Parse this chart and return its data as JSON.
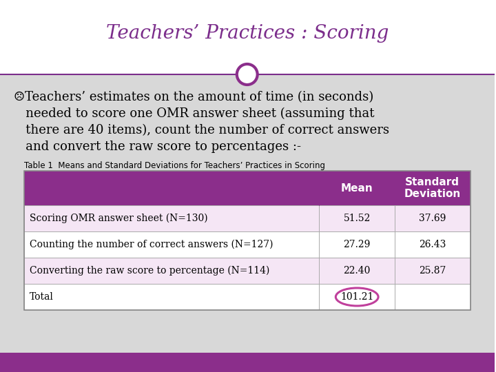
{
  "title": "Teachers’ Practices : Scoring",
  "title_color": "#7B2D8B",
  "white_bg": "#FFFFFF",
  "gray_bg": "#D8D8D8",
  "bottom_bar_color": "#8B2E8B",
  "body_line1": "☹Teachers’ estimates on the amount of time (in seconds)",
  "body_line2": "   needed to score one OMR answer sheet (assuming that",
  "body_line3": "   there are 40 items), count the number of correct answers",
  "body_line4": "   and convert the raw score to percentages :-",
  "table_caption": "Table 1  Means and Standard Deviations for Teachers’ Practices in Scoring",
  "table_header_bg": "#8B2E8B",
  "table_header_color": "#FFFFFF",
  "table_row_colors": [
    "#F5E6F5",
    "#FFFFFF",
    "#F5E6F5",
    "#FFFFFF"
  ],
  "table_rows": [
    {
      "label": "Scoring OMR answer sheet (N=130)",
      "mean": "51.52",
      "sd": "37.69"
    },
    {
      "label": "Counting the number of correct answers (N=127)",
      "mean": "27.29",
      "sd": "26.43"
    },
    {
      "label": "Converting the raw score to percentage (N=114)",
      "mean": "22.40",
      "sd": "25.87"
    },
    {
      "label": "Total",
      "mean": "101.21",
      "sd": ""
    }
  ],
  "circle_color": "#8B2E8B",
  "oval_color": "#C0409C",
  "title_fontsize": 20,
  "body_fontsize": 13,
  "table_label_fontsize": 10,
  "table_val_fontsize": 10,
  "header_fontsize": 11
}
